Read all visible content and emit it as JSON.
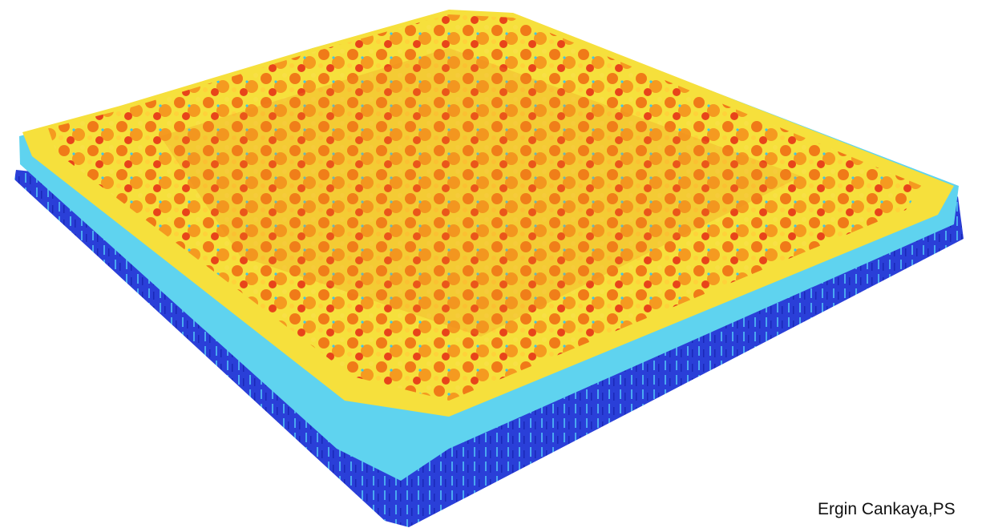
{
  "caption": {
    "text": "Ergin Cankaya,PS"
  }
}
